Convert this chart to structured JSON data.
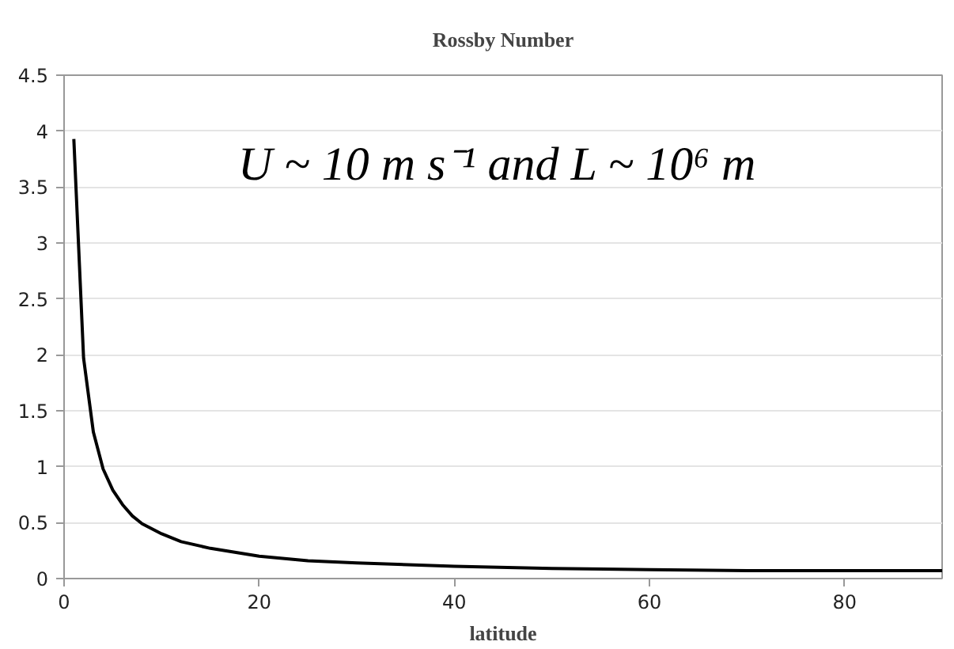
{
  "chart_data": {
    "type": "line",
    "title": "Rossby Number",
    "xlabel": "latitude",
    "annotations": [
      "U ~ 10 m s⁻¹ and L ~ 10⁶ m"
    ],
    "x": [
      1,
      2,
      3,
      4,
      5,
      6,
      7,
      8,
      10,
      12,
      15,
      20,
      25,
      30,
      40,
      50,
      60,
      70,
      80,
      90
    ],
    "series": [
      {
        "color": "#000000",
        "values": [
          3.93,
          1.97,
          1.31,
          0.98,
          0.79,
          0.66,
          0.56,
          0.49,
          0.4,
          0.33,
          0.27,
          0.2,
          0.16,
          0.14,
          0.11,
          0.09,
          0.08,
          0.07,
          0.07,
          0.07
        ]
      }
    ],
    "xlim": [
      0,
      90
    ],
    "xticks": [
      0,
      20,
      40,
      60,
      80
    ],
    "ylim": [
      0,
      4.5
    ],
    "yticks": [
      0,
      0.5,
      1,
      1.5,
      2,
      2.5,
      3,
      3.5,
      4,
      4.5
    ],
    "grid": "y",
    "marker": "none",
    "line_style": "solid"
  }
}
